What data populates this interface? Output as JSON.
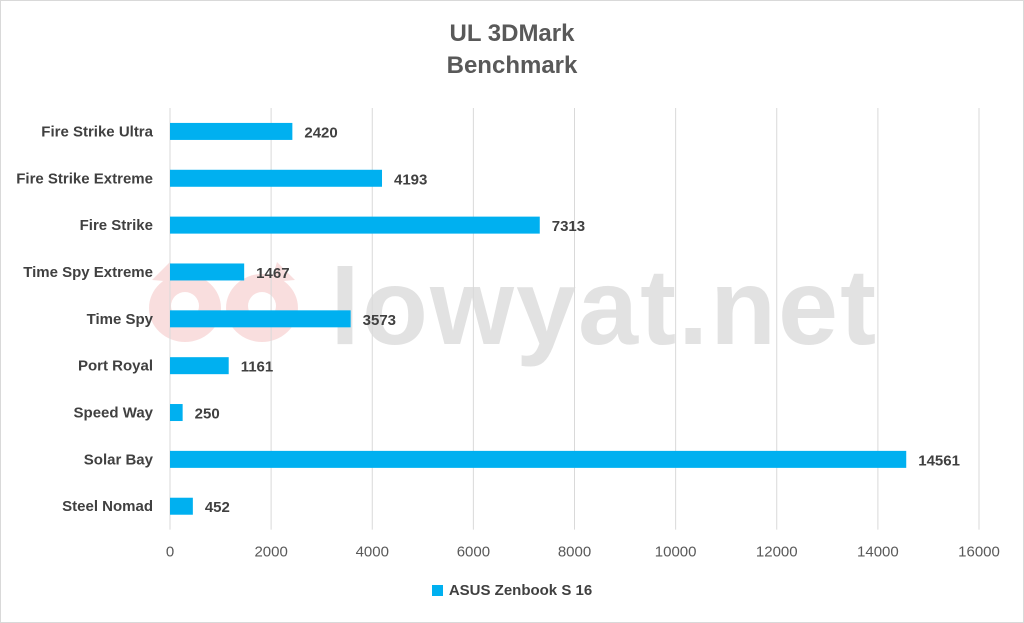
{
  "chart_data": {
    "type": "bar",
    "orientation": "horizontal",
    "title": [
      "UL 3DMark",
      "Benchmark"
    ],
    "categories": [
      "Fire Strike Ultra",
      "Fire Strike Extreme",
      "Fire Strike",
      "Time Spy Extreme",
      "Time Spy",
      "Port Royal",
      "Speed Way",
      "Solar Bay",
      "Steel Nomad"
    ],
    "series": [
      {
        "name": "ASUS Zenbook S 16",
        "values": [
          2420,
          4193,
          7313,
          1467,
          3573,
          1161,
          250,
          14561,
          452
        ],
        "color": "#00b0f0"
      }
    ],
    "xlim": [
      0,
      16000
    ],
    "x_ticks": [
      0,
      2000,
      4000,
      6000,
      8000,
      10000,
      12000,
      14000,
      16000
    ],
    "grid": true,
    "data_labels": true,
    "legend_position": "bottom"
  },
  "watermark": "lowyat.net",
  "colors": {
    "bar": "#00b0f0",
    "grid": "#d9d9d9",
    "text": "#404040",
    "title": "#595959"
  }
}
